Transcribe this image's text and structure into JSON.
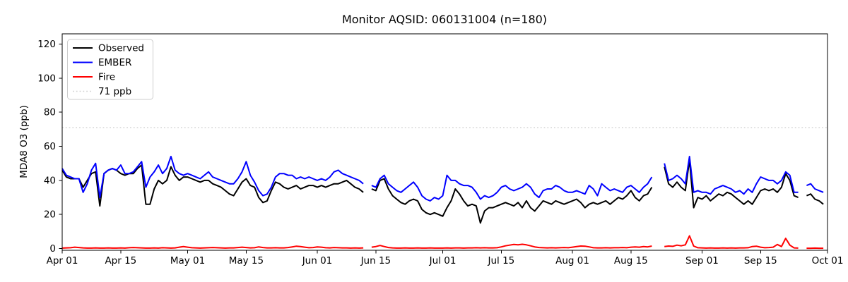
{
  "chart_data": {
    "type": "line",
    "title": "Monitor AQSID: 060131004 (n=180)",
    "ylabel": "MDA8 O3 (ppb)",
    "xlabel": "",
    "n_label": 180,
    "x_start_label": "Apr 01",
    "x_end_label": "Oct 01",
    "x_days": 183,
    "ylim": [
      -1,
      126
    ],
    "yticks": [
      0,
      20,
      40,
      60,
      80,
      100,
      120
    ],
    "xticks": [
      {
        "day": 0,
        "label": "Apr 01"
      },
      {
        "day": 14,
        "label": "Apr 15"
      },
      {
        "day": 30,
        "label": "May 01"
      },
      {
        "day": 44,
        "label": "May 15"
      },
      {
        "day": 61,
        "label": "Jun 01"
      },
      {
        "day": 75,
        "label": "Jun 15"
      },
      {
        "day": 91,
        "label": "Jul 01"
      },
      {
        "day": 105,
        "label": "Jul 15"
      },
      {
        "day": 122,
        "label": "Aug 01"
      },
      {
        "day": 136,
        "label": "Aug 15"
      },
      {
        "day": 153,
        "label": "Sep 01"
      },
      {
        "day": 167,
        "label": "Sep 15"
      },
      {
        "day": 183,
        "label": "Oct 01"
      }
    ],
    "threshold": {
      "value": 71,
      "label": "71 ppb",
      "color": "#d3d3d3",
      "style": "dotted"
    },
    "legend": [
      {
        "label": "Observed",
        "color": "#000000",
        "style": "solid"
      },
      {
        "label": "EMBER",
        "color": "#0000ff",
        "style": "solid"
      },
      {
        "label": "Fire",
        "color": "#ff0000",
        "style": "solid"
      },
      {
        "label": "71 ppb",
        "color": "#d3d3d3",
        "style": "dotted"
      }
    ],
    "series": [
      {
        "name": "Observed",
        "color": "#000000",
        "values": [
          46,
          42,
          41,
          41,
          41,
          36,
          40,
          44,
          45,
          25,
          44,
          46,
          47,
          46,
          44,
          43,
          44,
          44,
          47,
          49,
          26,
          26,
          35,
          40,
          38,
          40,
          48,
          43,
          40,
          42,
          42,
          41,
          40,
          39,
          40,
          40,
          38,
          37,
          36,
          34,
          32,
          31,
          35,
          39,
          41,
          37,
          36,
          30,
          27,
          28,
          34,
          39,
          38,
          36,
          35,
          36,
          37,
          35,
          36,
          37,
          37,
          36,
          37,
          36,
          37,
          38,
          38,
          39,
          40,
          38,
          36,
          35,
          33,
          null,
          35,
          34,
          40,
          41,
          35,
          31,
          29,
          27,
          26,
          28,
          29,
          28,
          23,
          21,
          20,
          21,
          20,
          19,
          24,
          28,
          35,
          32,
          28,
          25,
          26,
          25,
          15,
          22,
          24,
          24,
          25,
          26,
          27,
          26,
          25,
          27,
          24,
          28,
          24,
          22,
          25,
          28,
          27,
          26,
          28,
          27,
          26,
          27,
          28,
          29,
          27,
          24,
          26,
          27,
          26,
          27,
          28,
          26,
          28,
          30,
          29,
          31,
          34,
          30,
          28,
          31,
          32,
          36,
          null,
          null,
          48,
          38,
          36,
          39,
          36,
          34,
          52,
          24,
          30,
          29,
          31,
          28,
          30,
          32,
          31,
          33,
          32,
          30,
          28,
          26,
          28,
          26,
          30,
          34,
          35,
          34,
          35,
          33,
          36,
          44,
          40,
          31,
          30,
          null,
          31,
          32,
          29,
          28,
          26
        ]
      },
      {
        "name": "EMBER",
        "color": "#0000ff",
        "values": [
          47,
          43,
          42,
          41,
          41,
          33,
          38,
          46,
          50,
          30,
          44,
          46,
          47,
          46,
          49,
          44,
          44,
          45,
          48,
          51,
          36,
          42,
          45,
          49,
          44,
          47,
          54,
          46,
          44,
          43,
          44,
          43,
          42,
          41,
          43,
          45,
          42,
          41,
          40,
          39,
          38,
          38,
          41,
          45,
          51,
          43,
          39,
          34,
          31,
          32,
          36,
          42,
          44,
          44,
          43,
          43,
          41,
          42,
          41,
          42,
          41,
          40,
          41,
          40,
          42,
          45,
          46,
          44,
          43,
          42,
          41,
          40,
          38,
          null,
          37,
          36,
          41,
          43,
          38,
          36,
          34,
          33,
          35,
          37,
          39,
          36,
          31,
          29,
          28,
          30,
          29,
          31,
          43,
          40,
          40,
          38,
          37,
          37,
          36,
          33,
          29,
          31,
          30,
          31,
          33,
          36,
          37,
          35,
          34,
          35,
          36,
          38,
          36,
          32,
          30,
          34,
          35,
          35,
          37,
          36,
          34,
          33,
          33,
          34,
          33,
          32,
          37,
          35,
          31,
          38,
          36,
          34,
          35,
          34,
          33,
          36,
          37,
          35,
          33,
          36,
          38,
          42,
          null,
          null,
          50,
          40,
          41,
          43,
          41,
          38,
          54,
          33,
          34,
          33,
          33,
          32,
          35,
          36,
          37,
          36,
          35,
          33,
          34,
          32,
          35,
          33,
          38,
          42,
          41,
          40,
          40,
          38,
          40,
          45,
          43,
          33,
          33,
          null,
          37,
          38,
          35,
          34,
          33
        ]
      },
      {
        "name": "Fire",
        "color": "#ff0000",
        "values": [
          0.3,
          0.4,
          0.5,
          0.8,
          0.6,
          0.4,
          0.3,
          0.3,
          0.4,
          0.3,
          0.3,
          0.4,
          0.3,
          0.3,
          0.4,
          0.3,
          0.5,
          0.6,
          0.5,
          0.4,
          0.3,
          0.3,
          0.4,
          0.3,
          0.5,
          0.4,
          0.3,
          0.4,
          0.8,
          1.2,
          0.8,
          0.5,
          0.4,
          0.3,
          0.4,
          0.5,
          0.6,
          0.5,
          0.4,
          0.3,
          0.4,
          0.4,
          0.6,
          0.8,
          0.6,
          0.4,
          0.5,
          1.0,
          0.6,
          0.4,
          0.4,
          0.5,
          0.4,
          0.4,
          0.6,
          1.0,
          1.4,
          1.2,
          0.8,
          0.5,
          0.6,
          1.0,
          0.8,
          0.5,
          0.4,
          0.6,
          0.5,
          0.4,
          0.4,
          0.3,
          0.4,
          0.3,
          0.4,
          null,
          0.8,
          1.2,
          1.8,
          1.2,
          0.6,
          0.4,
          0.3,
          0.3,
          0.4,
          0.3,
          0.3,
          0.4,
          0.3,
          0.3,
          0.4,
          0.3,
          0.3,
          0.3,
          0.4,
          0.3,
          0.4,
          0.4,
          0.3,
          0.4,
          0.4,
          0.5,
          0.4,
          0.5,
          0.4,
          0.4,
          0.5,
          1.0,
          1.6,
          2.0,
          2.4,
          2.2,
          2.5,
          2.2,
          1.6,
          1.0,
          0.6,
          0.5,
          0.4,
          0.5,
          0.4,
          0.5,
          0.6,
          0.5,
          0.8,
          1.2,
          1.5,
          1.4,
          1.0,
          0.5,
          0.4,
          0.4,
          0.5,
          0.4,
          0.5,
          0.5,
          0.6,
          0.5,
          0.8,
          1.0,
          0.8,
          1.2,
          1.0,
          1.5,
          null,
          null,
          1.2,
          1.5,
          1.3,
          2.0,
          1.6,
          2.2,
          7.5,
          1.5,
          0.5,
          0.4,
          0.3,
          0.4,
          0.3,
          0.3,
          0.4,
          0.3,
          0.4,
          0.3,
          0.4,
          0.4,
          0.5,
          1.2,
          1.4,
          0.8,
          0.5,
          0.6,
          0.8,
          2.4,
          1.2,
          6.0,
          2.0,
          0.4,
          0.3,
          null,
          0.2,
          0.2,
          0.3,
          0.2,
          0.2
        ]
      }
    ]
  }
}
